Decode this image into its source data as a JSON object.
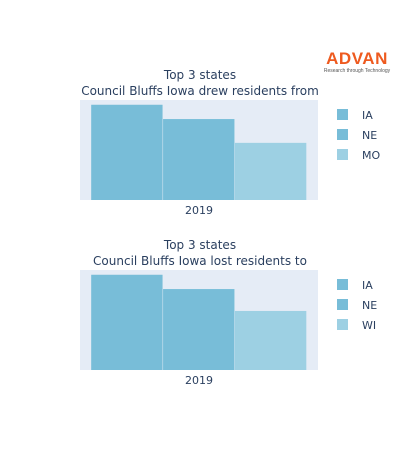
{
  "logo": {
    "name": "ADVAN",
    "tagline": "Research through Technology",
    "color": "#ee5a1f"
  },
  "chart_data": [
    {
      "type": "bar",
      "title_lines": [
        "Top 3 states",
        "Council Bluffs Iowa drew residents from"
      ],
      "categories": [
        "2019"
      ],
      "series": [
        {
          "name": "IA",
          "values": [
            100
          ],
          "color": "#78bdd8"
        },
        {
          "name": "NE",
          "values": [
            85
          ],
          "color": "#78bdd8"
        },
        {
          "name": "MO",
          "values": [
            60
          ],
          "color": "#9dd0e3"
        }
      ],
      "xlabel": "",
      "ylabel": "",
      "ylim": [
        0,
        105
      ],
      "legend": "right",
      "grid": false
    },
    {
      "type": "bar",
      "title_lines": [
        "Top 3 states",
        "Council Bluffs Iowa lost residents to"
      ],
      "categories": [
        "2019"
      ],
      "series": [
        {
          "name": "IA",
          "values": [
            100
          ],
          "color": "#78bdd8"
        },
        {
          "name": "NE",
          "values": [
            85
          ],
          "color": "#78bdd8"
        },
        {
          "name": "WI",
          "values": [
            62
          ],
          "color": "#9dd0e3"
        }
      ],
      "xlabel": "",
      "ylabel": "",
      "ylim": [
        0,
        105
      ],
      "legend": "right",
      "grid": false
    }
  ]
}
